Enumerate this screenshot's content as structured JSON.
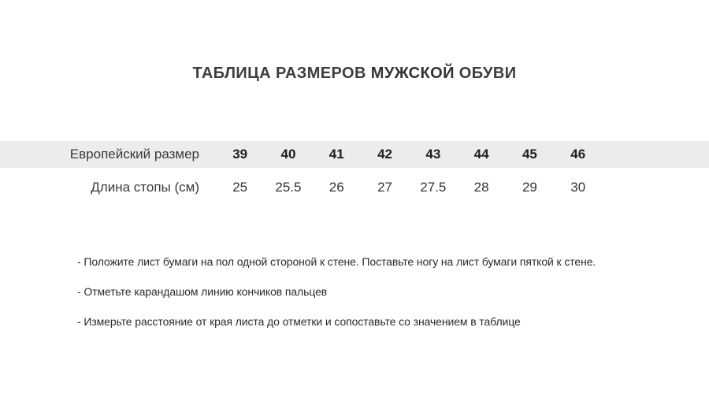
{
  "title": {
    "prefix": "ТАБЛИЦА РАЗМЕРОВ ",
    "emphasis": "МУЖСКОЙ",
    "suffix": " ОБУВИ"
  },
  "size_table": {
    "rows": [
      {
        "label": "Европейский размер",
        "values": [
          "39",
          "40",
          "41",
          "42",
          "43",
          "44",
          "45",
          "46"
        ]
      },
      {
        "label": "Длина стопы (см)",
        "values": [
          "25",
          "25.5",
          "26",
          "27",
          "27.5",
          "28",
          "29",
          "30"
        ]
      }
    ]
  },
  "instructions": {
    "items": [
      "- Положите лист бумаги на пол одной стороной к стене. Поставьте ногу на лист бумаги пяткой к стене.",
      "- Отметьте карандашом линию кончиков пальцев",
      "- Измерьте расстояние от края листа до отметки и сопоставьте со значением в таблице"
    ]
  },
  "colors": {
    "stripe": "#ececec",
    "title_text": "#3d3d3d",
    "table_text": "#3a3a3a",
    "bold_numbers": "#1f1f1f",
    "instructions_text": "#2b2b2b",
    "background": "#ffffff"
  }
}
